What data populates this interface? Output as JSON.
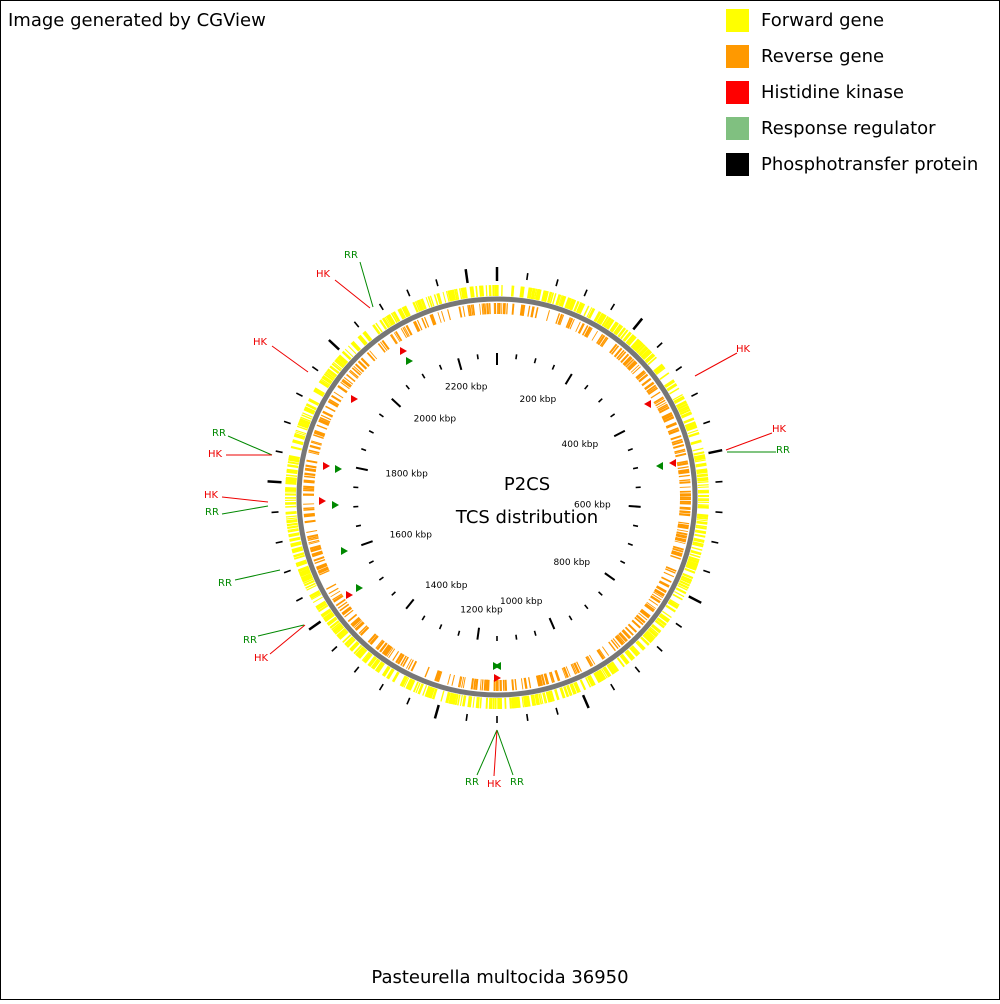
{
  "header": {
    "credit": "Image generated by CGView"
  },
  "legend": [
    {
      "label": "Forward gene",
      "color": "#ffff00"
    },
    {
      "label": "Reverse gene",
      "color": "#ff9900"
    },
    {
      "label": "Histidine kinase",
      "color": "#ff0000"
    },
    {
      "label": "Response regulator",
      "color": "#80c080"
    },
    {
      "label": "Phosphotransfer protein",
      "color": "#000000"
    }
  ],
  "center": {
    "title": "P2CS",
    "subtitle": "TCS distribution"
  },
  "ruler": [
    "200 kbp",
    "400 kbp",
    "600 kbp",
    "800 kbp",
    "1000 kbp",
    "1200 kbp",
    "1400 kbp",
    "1600 kbp",
    "1800 kbp",
    "2000 kbp",
    "2200 kbp"
  ],
  "annotations": [
    "RR",
    "HK",
    "HK",
    "HK",
    "HK",
    "RR",
    "RR",
    "HK",
    "HK",
    "RR",
    "RR",
    "RR",
    "HK",
    "RR",
    "HK",
    "RR"
  ],
  "footer": {
    "organism": "Pasteurella multocida 36950"
  }
}
